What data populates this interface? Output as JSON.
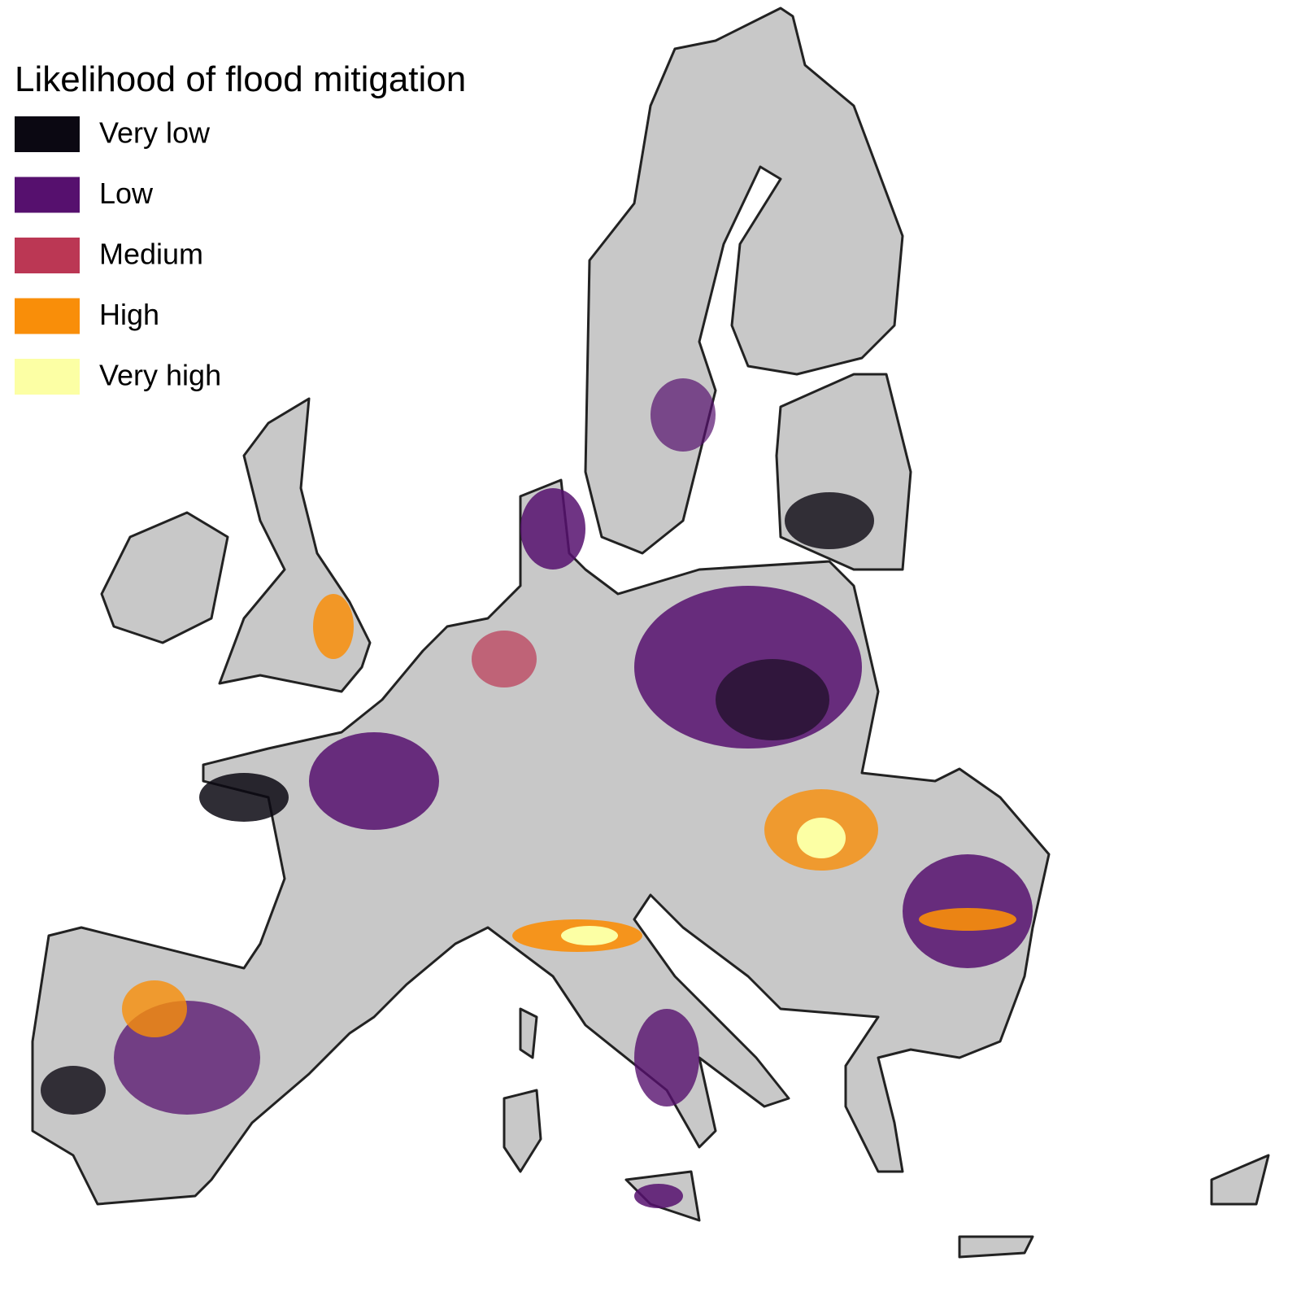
{
  "legend": {
    "title": "Likelihood of flood mitigation",
    "items": [
      {
        "label": "Very low",
        "color": "#0b0812"
      },
      {
        "label": "Low",
        "color": "#56106e"
      },
      {
        "label": "Medium",
        "color": "#bb3754"
      },
      {
        "label": "High",
        "color": "#f98e09"
      },
      {
        "label": "Very high",
        "color": "#fcffa4"
      }
    ]
  }
}
